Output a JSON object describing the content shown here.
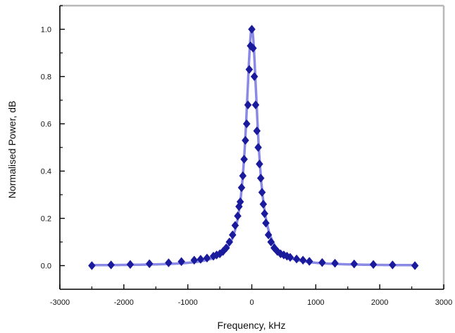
{
  "chart_data": {
    "type": "scatter",
    "title": "",
    "xlabel": "Frequency, kHz",
    "ylabel": "Normalised Power, dB",
    "xlim": [
      -3000,
      3000
    ],
    "ylim": [
      -0.1,
      1.1
    ],
    "x_ticks": [
      -3000,
      -2000,
      -1000,
      0,
      1000,
      2000,
      3000
    ],
    "y_ticks": [
      0.0,
      0.2,
      0.4,
      0.6,
      0.8,
      1.0
    ],
    "x_tick_labels": [
      "-3000",
      "-2000",
      "-1000",
      "0",
      "1000",
      "2000",
      "3000"
    ],
    "y_tick_labels": [
      "0.0",
      "0.2",
      "0.4",
      "0.6",
      "0.8",
      "1.0"
    ],
    "grid": false,
    "series": [
      {
        "kind": "markers",
        "marker": "diamond",
        "color": "#1a1a9c",
        "x": [
          -2500,
          -2200,
          -1900,
          -1600,
          -1300,
          -1100,
          -900,
          -800,
          -700,
          -600,
          -550,
          -500,
          -450,
          -400,
          -350,
          -300,
          -260,
          -220,
          -200,
          -180,
          -160,
          -140,
          -120,
          -100,
          -80,
          -60,
          -40,
          -20,
          0,
          20,
          40,
          60,
          80,
          100,
          120,
          140,
          160,
          180,
          200,
          220,
          260,
          300,
          350,
          400,
          450,
          500,
          550,
          600,
          700,
          800,
          900,
          1100,
          1300,
          1600,
          1900,
          2200,
          2550
        ],
        "y": [
          0.0,
          0.003,
          0.005,
          0.008,
          0.012,
          0.017,
          0.023,
          0.027,
          0.032,
          0.04,
          0.045,
          0.05,
          0.06,
          0.075,
          0.1,
          0.13,
          0.17,
          0.21,
          0.25,
          0.27,
          0.33,
          0.38,
          0.45,
          0.53,
          0.6,
          0.68,
          0.83,
          0.93,
          1.0,
          0.92,
          0.8,
          0.68,
          0.57,
          0.5,
          0.43,
          0.37,
          0.31,
          0.26,
          0.22,
          0.18,
          0.13,
          0.1,
          0.075,
          0.06,
          0.05,
          0.045,
          0.04,
          0.035,
          0.028,
          0.023,
          0.018,
          0.013,
          0.01,
          0.007,
          0.005,
          0.003,
          0.0
        ]
      },
      {
        "kind": "line",
        "color": "#8a8ae6",
        "fit": "lorentzian",
        "center": 0,
        "hwhm": 110,
        "amplitude": 1.0,
        "x_range": [
          -2500,
          2550
        ]
      }
    ]
  }
}
